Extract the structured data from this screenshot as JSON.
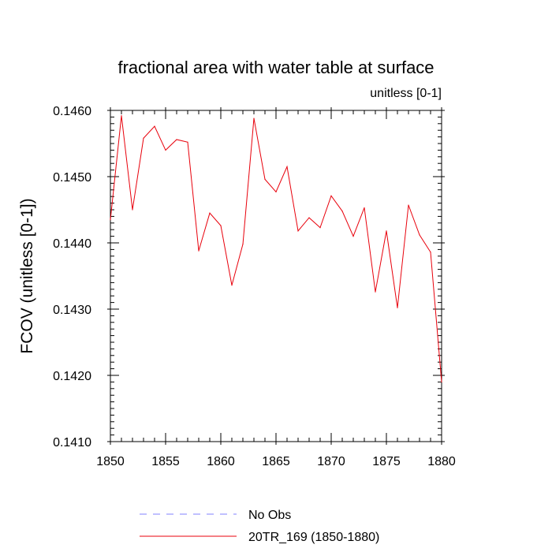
{
  "chart_data": {
    "type": "line",
    "title": "fractional area with water table at surface",
    "subtitle": "unitless [0-1]",
    "xlabel": "",
    "ylabel": "FCOV  (unitless [0-1])",
    "xlim": [
      1850,
      1880
    ],
    "ylim": [
      0.141,
      0.146
    ],
    "grid": false,
    "x_ticks": [
      {
        "value": 1850,
        "label": "1850"
      },
      {
        "value": 1855,
        "label": "1855"
      },
      {
        "value": 1860,
        "label": "1860"
      },
      {
        "value": 1865,
        "label": "1865"
      },
      {
        "value": 1870,
        "label": "1870"
      },
      {
        "value": 1875,
        "label": "1875"
      },
      {
        "value": 1880,
        "label": "1880"
      }
    ],
    "y_ticks": [
      {
        "value": 0.141,
        "label": "0.1410"
      },
      {
        "value": 0.142,
        "label": "0.1420"
      },
      {
        "value": 0.143,
        "label": "0.1430"
      },
      {
        "value": 0.144,
        "label": "0.1440"
      },
      {
        "value": 0.145,
        "label": "0.1450"
      },
      {
        "value": 0.146,
        "label": "0.1460"
      }
    ],
    "x_minor_step": 1,
    "y_minor_step": 0.0001,
    "legend_placement": "bottom",
    "legend": [
      {
        "label": "No Obs",
        "color": "#8080ff",
        "style": "dashed"
      },
      {
        "label": "20TR_169 (1850-1880)",
        "color": "#e8000b",
        "style": "solid"
      }
    ],
    "series": [
      {
        "name": "20TR_169 (1850-1880)",
        "color": "#e8000b",
        "x": [
          1850,
          1851,
          1852,
          1853,
          1854,
          1855,
          1856,
          1857,
          1858,
          1859,
          1860,
          1861,
          1862,
          1863,
          1864,
          1865,
          1866,
          1867,
          1868,
          1869,
          1870,
          1871,
          1872,
          1873,
          1874,
          1875,
          1876,
          1877,
          1878,
          1879,
          1880
        ],
        "values": [
          0.14435,
          0.14592,
          0.1445,
          0.14558,
          0.14576,
          0.1454,
          0.14556,
          0.14552,
          0.14388,
          0.14445,
          0.14426,
          0.14336,
          0.14398,
          0.14588,
          0.14496,
          0.14477,
          0.14515,
          0.14418,
          0.14438,
          0.14423,
          0.14471,
          0.14448,
          0.1441,
          0.14453,
          0.14326,
          0.14418,
          0.14302,
          0.14457,
          0.14412,
          0.14386,
          0.1419
        ]
      },
      {
        "name": "No Obs",
        "color": "#8080ff",
        "x": [],
        "values": []
      }
    ]
  }
}
